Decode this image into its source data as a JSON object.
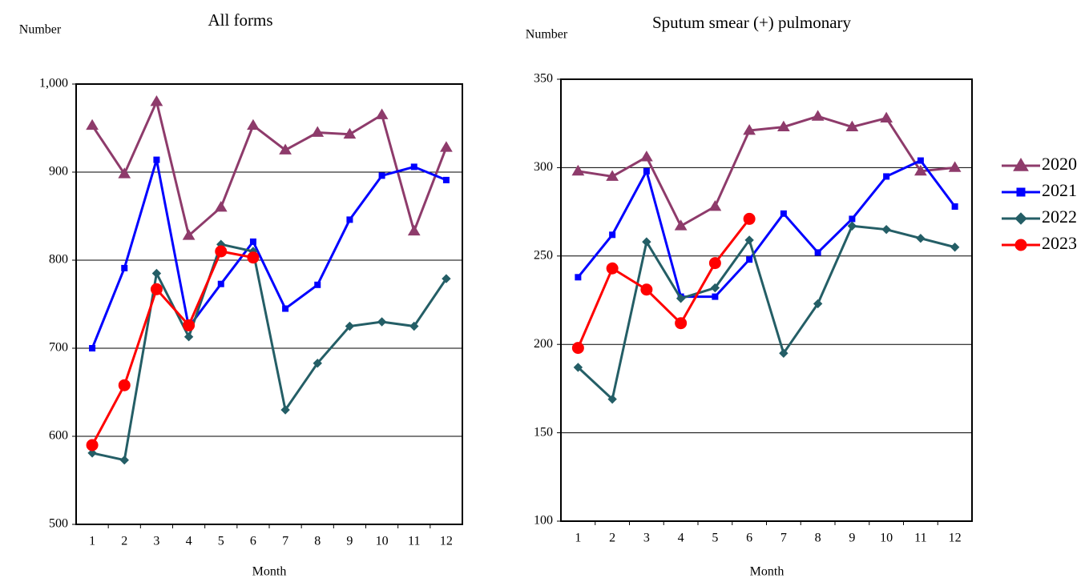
{
  "chart_data": [
    {
      "type": "line",
      "title": "All forms",
      "y_label": "Number",
      "x_label": "Month",
      "categories": [
        "1",
        "2",
        "3",
        "4",
        "5",
        "6",
        "7",
        "8",
        "9",
        "10",
        "11",
        "12"
      ],
      "ylim": [
        500,
        1000
      ],
      "yticks": [
        500,
        600,
        700,
        800,
        900,
        {
          "value": 1000,
          "label": "1,000"
        }
      ],
      "grid": true,
      "series": [
        {
          "color": "#8e3b6b",
          "marker": "triangle",
          "values": [
            953,
            898,
            980,
            828,
            860,
            953,
            925,
            945,
            943,
            965,
            833,
            928
          ]
        },
        {
          "color": "#0000ff",
          "marker": "square",
          "values": [
            700,
            791,
            914,
            724,
            773,
            821,
            745,
            772,
            846,
            896,
            906,
            891
          ]
        },
        {
          "color": "#245e66",
          "marker": "diamond",
          "values": [
            581,
            573,
            785,
            713,
            818,
            810,
            630,
            683,
            725,
            730,
            725,
            779
          ]
        },
        {
          "color": "#ff0000",
          "marker": "circle",
          "values": [
            590,
            658,
            767,
            726,
            810,
            803,
            null,
            null,
            null,
            null,
            null,
            null
          ]
        }
      ]
    },
    {
      "type": "line",
      "title": "Sputum  smear (+) pulmonary",
      "y_label": "Number",
      "x_label": "Month",
      "categories": [
        "1",
        "2",
        "3",
        "4",
        "5",
        "6",
        "7",
        "8",
        "9",
        "10",
        "11",
        "12"
      ],
      "ylim": [
        100,
        350
      ],
      "yticks": [
        100,
        150,
        200,
        250,
        300,
        350
      ],
      "grid": true,
      "legend": "right",
      "series": [
        {
          "name": "2020",
          "color": "#8e3b6b",
          "marker": "triangle",
          "values": [
            298,
            295,
            306,
            267,
            278,
            321,
            323,
            329,
            323,
            328,
            298,
            300
          ]
        },
        {
          "name": "2021",
          "color": "#0000ff",
          "marker": "square",
          "values": [
            238,
            262,
            298,
            227,
            227,
            248,
            274,
            252,
            271,
            295,
            304,
            278
          ]
        },
        {
          "name": "2022",
          "color": "#245e66",
          "marker": "diamond",
          "values": [
            187,
            169,
            258,
            226,
            232,
            259,
            195,
            223,
            267,
            265,
            260,
            255
          ]
        },
        {
          "name": "2023",
          "color": "#ff0000",
          "marker": "circle",
          "values": [
            198,
            243,
            231,
            212,
            246,
            271,
            null,
            null,
            null,
            null,
            null,
            null
          ]
        }
      ]
    }
  ]
}
